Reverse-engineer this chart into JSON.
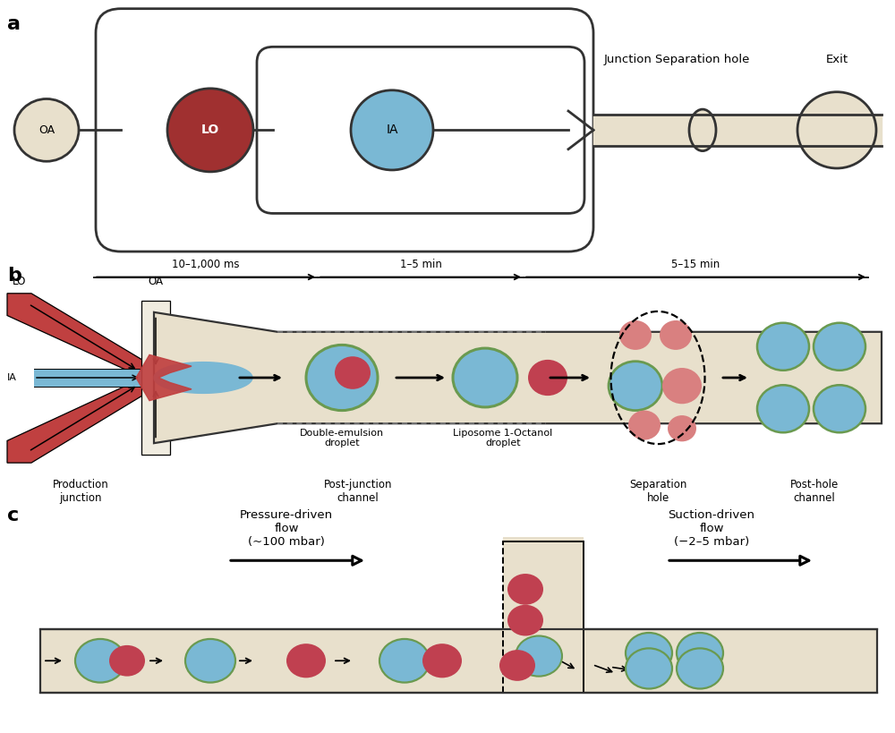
{
  "bg_color": "#ffffff",
  "channel_fill": "#e8e0cc",
  "channel_edge": "#333333",
  "OA_color": "#e8e0cc",
  "LO_color": "#a03030",
  "IA_color": "#7ab8d4",
  "liposome_ring_color": "#6a9a50",
  "octanol_color": "#c04050",
  "red_channel_color": "#c04040",
  "blue_channel_color": "#7ab8d4",
  "pink_color": "#d98080",
  "panel_a_label": "a",
  "panel_b_label": "b",
  "panel_c_label": "c",
  "junction_label": "Junction",
  "sep_hole_label": "Separation hole",
  "exit_label": "Exit",
  "time1": "10–1,000 ms",
  "time2": "1–5 min",
  "time3": "5–15 min",
  "prod_junction": "Production\njunction",
  "post_junction": "Post-junction\nchannel",
  "sep_hole_b": "Separation\nhole",
  "post_hole": "Post-hole\nchannel",
  "double_emulsion": "Double-emulsion\ndroplet",
  "liposome_1oct": "Liposome 1-Octanol\ndroplet",
  "pressure_flow": "Pressure-driven\nflow\n(~100 mbar)",
  "suction_flow": "Suction-driven\nflow\n(−2–5 mbar)"
}
